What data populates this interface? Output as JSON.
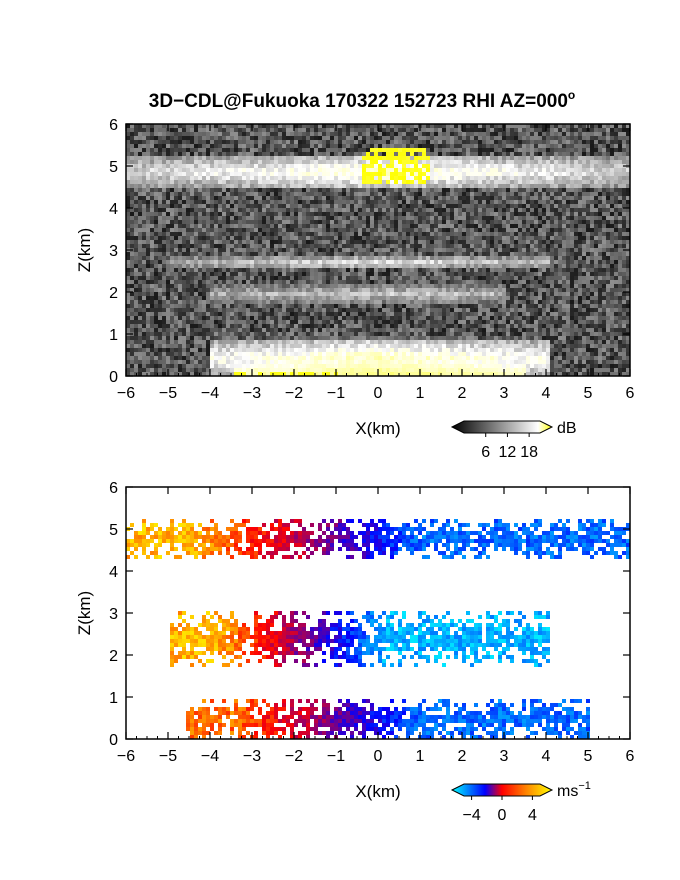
{
  "chart_data": [
    {
      "type": "heatmap",
      "title": "3D−CDL@Fukuoka 170322 152723 RHI AZ=000",
      "title_suffix": "o",
      "xlabel": "X(km)",
      "ylabel": "Z(km)",
      "xlim": [
        -6,
        6
      ],
      "ylim": [
        0,
        6
      ],
      "x_ticks": [
        "−6",
        "−5",
        "−4",
        "−3",
        "−2",
        "−1",
        "0",
        "1",
        "2",
        "3",
        "4",
        "5",
        "6"
      ],
      "y_ticks": [
        "0",
        "1",
        "2",
        "3",
        "4",
        "5",
        "6"
      ],
      "colorbar": {
        "unit": "dB",
        "ticks": [
          "6",
          "12",
          "18"
        ],
        "range": [
          0,
          21
        ],
        "colors": [
          "#000000",
          "#ffffff",
          "#ffff00"
        ]
      },
      "layers": [
        {
          "z_min": 4.5,
          "z_max": 5.3,
          "x_min": -6,
          "x_max": 6,
          "level_db": 11
        },
        {
          "z_min": 2.6,
          "z_max": 2.9,
          "x_min": -5,
          "x_max": 4,
          "level_db": 8
        },
        {
          "z_min": 1.8,
          "z_max": 2.2,
          "x_min": -4,
          "x_max": 3,
          "level_db": 7
        },
        {
          "z_min": 0.0,
          "z_max": 0.9,
          "x_min": -4,
          "x_max": 4,
          "level_db": 12
        }
      ],
      "strong_echo": {
        "x_min": -0.4,
        "x_max": 1.2,
        "z_min": 4.6,
        "z_max": 5.5,
        "level_db": 19
      }
    },
    {
      "type": "heatmap",
      "xlabel": "X(km)",
      "ylabel": "Z(km)",
      "xlim": [
        -6,
        6
      ],
      "ylim": [
        0,
        6
      ],
      "x_ticks": [
        "−6",
        "−5",
        "−4",
        "−3",
        "−2",
        "−1",
        "0",
        "1",
        "2",
        "3",
        "4",
        "5",
        "6"
      ],
      "y_ticks": [
        "0",
        "1",
        "2",
        "3",
        "4",
        "5",
        "6"
      ],
      "colorbar": {
        "unit": "ms",
        "unit_exp": "−1",
        "ticks": [
          "−4",
          "0",
          "4"
        ],
        "range": [
          -5,
          5
        ],
        "colors": [
          "#00ffff",
          "#0000ff",
          "#ff0000",
          "#ffff00"
        ]
      },
      "layers": [
        {
          "z_min": 4.3,
          "z_max": 5.3,
          "x_min": -6,
          "x_max": 6,
          "velocity_left": 4,
          "velocity_right": -3
        },
        {
          "z_min": 1.8,
          "z_max": 3.1,
          "x_min": -5,
          "x_max": 4,
          "velocity_left": 4,
          "velocity_right": -4
        },
        {
          "z_min": 0.0,
          "z_max": 1.0,
          "x_min": -4.6,
          "x_max": 5,
          "velocity_left": 3,
          "velocity_right": -3
        }
      ]
    }
  ]
}
